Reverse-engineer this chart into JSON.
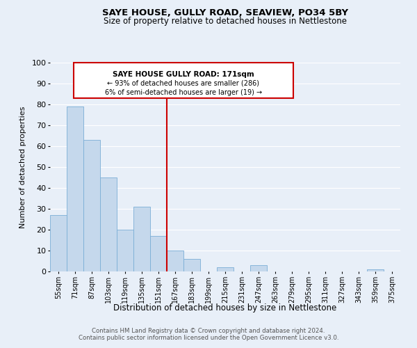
{
  "title1": "SAYE HOUSE, GULLY ROAD, SEAVIEW, PO34 5BY",
  "title2": "Size of property relative to detached houses in Nettlestone",
  "xlabel": "Distribution of detached houses by size in Nettlestone",
  "ylabel": "Number of detached properties",
  "footnote1": "Contains HM Land Registry data © Crown copyright and database right 2024.",
  "footnote2": "Contains public sector information licensed under the Open Government Licence v3.0.",
  "bin_labels": [
    "55sqm",
    "71sqm",
    "87sqm",
    "103sqm",
    "119sqm",
    "135sqm",
    "151sqm",
    "167sqm",
    "183sqm",
    "199sqm",
    "215sqm",
    "231sqm",
    "247sqm",
    "263sqm",
    "279sqm",
    "295sqm",
    "311sqm",
    "327sqm",
    "343sqm",
    "359sqm",
    "375sqm"
  ],
  "bar_values": [
    27,
    79,
    63,
    45,
    20,
    31,
    17,
    10,
    6,
    0,
    2,
    0,
    3,
    0,
    0,
    0,
    0,
    0,
    0,
    1,
    0
  ],
  "bar_color": "#c5d8ec",
  "bar_edge_color": "#7aaed6",
  "property_line_label": "SAYE HOUSE GULLY ROAD: 171sqm",
  "annotation_smaller": "← 93% of detached houses are smaller (286)",
  "annotation_larger": "6% of semi-detached houses are larger (19) →",
  "box_facecolor": "#ffffff",
  "box_edgecolor": "#cc0000",
  "line_color": "#cc0000",
  "ylim": [
    0,
    100
  ],
  "yticks": [
    0,
    10,
    20,
    30,
    40,
    50,
    60,
    70,
    80,
    90,
    100
  ],
  "background_color": "#e8eff8",
  "grid_color": "#ffffff",
  "prop_line_index": 7
}
